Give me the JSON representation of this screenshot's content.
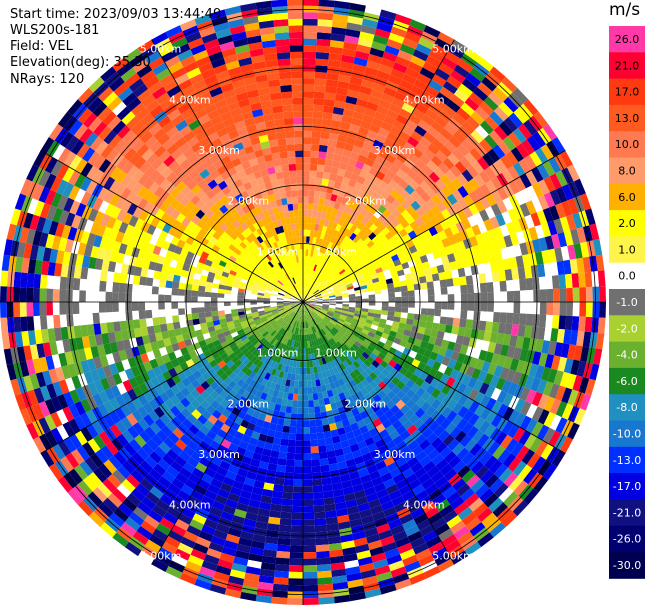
{
  "header": {
    "start_time": "Start time: 2023/09/03 13:44:49",
    "instrument": "WLS200s-181",
    "field": "Field: VEL",
    "elevation": "Elevation(deg): 35.30",
    "nrays": "NRays: 120"
  },
  "colorbar": {
    "unit": "m/s",
    "ticks": [
      "26.0",
      "21.0",
      "17.0",
      "13.0",
      "10.0",
      "8.0",
      "6.0",
      "2.0",
      "1.0",
      "0.0",
      "-1.0",
      "-2.0",
      "-4.0",
      "-6.0",
      "-8.0",
      "-10.0",
      "-13.0",
      "-17.0",
      "-21.0",
      "-26.0",
      "-30.0"
    ],
    "colors": [
      "#ff3aa8",
      "#ff0033",
      "#ff3a10",
      "#ff5a20",
      "#ff7a50",
      "#ff9a6a",
      "#ffb000",
      "#ffff00",
      "#fff54a",
      "#ffffff",
      "#707070",
      "#a8d030",
      "#6cb030",
      "#1a8a20",
      "#2090c0",
      "#1878d0",
      "#0030ff",
      "#0000e0",
      "#101080",
      "#000070",
      "#000050"
    ]
  },
  "chart_data": {
    "type": "heatmap",
    "projection": "polar PPI (plan position indicator)",
    "field": "VEL",
    "units": "m/s",
    "n_rays": 120,
    "range_ring_labels": [
      "1.00km",
      "2.00km",
      "3.00km",
      "4.00km",
      "5.00km"
    ],
    "range_rings_km": [
      1,
      2,
      3,
      4,
      5
    ],
    "color_range": [
      -30,
      26
    ],
    "pattern_by_range_km": [
      {
        "range": [
          0,
          4
        ],
        "north_half": "positive (yellow → orange/red, up to ~17 m/s)",
        "south_half": "negative (green → blue, down to ~-10 m/s)"
      },
      {
        "range": [
          4,
          5.5
        ],
        "note": "noisy / random velocities across full scale"
      }
    ]
  }
}
